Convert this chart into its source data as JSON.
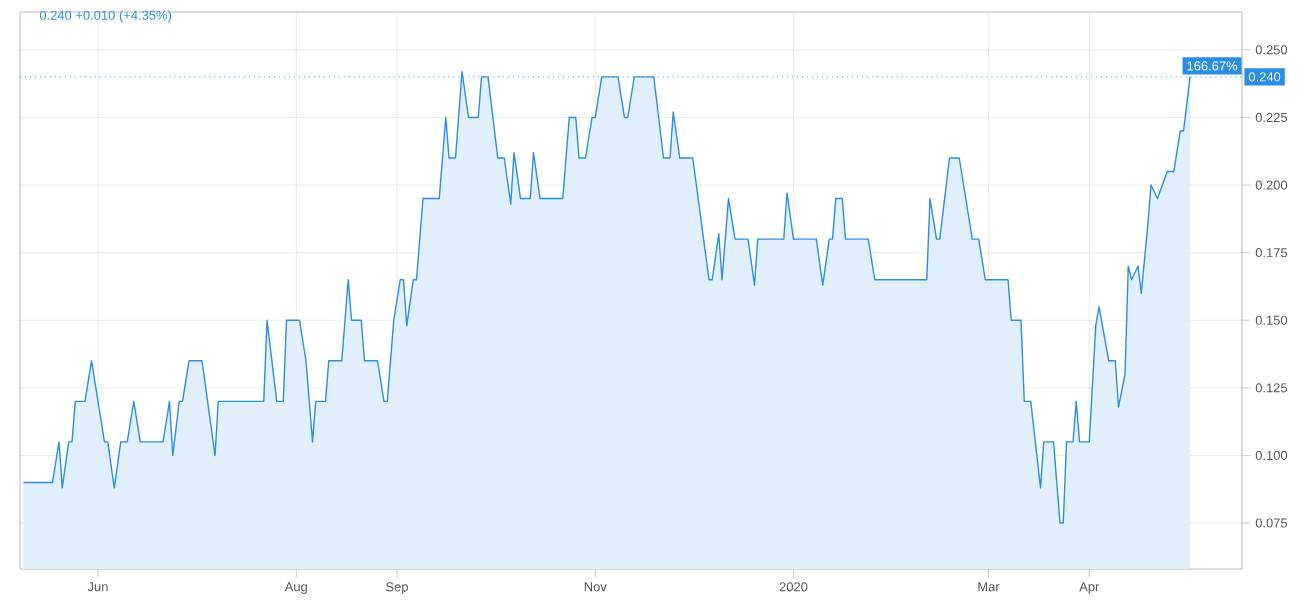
{
  "chart_data": {
    "type": "area",
    "title": "0.240 +0.010 (+4.35%)",
    "color": "#2a8ee6",
    "x": [
      "2019-05-09",
      "2019-05-18",
      "2019-05-20",
      "2019-05-21",
      "2019-05-23",
      "2019-05-24",
      "2019-05-25",
      "2019-05-28",
      "2019-05-30",
      "2019-06-03",
      "2019-06-04",
      "2019-06-06",
      "2019-06-08",
      "2019-06-10",
      "2019-06-12",
      "2019-06-14",
      "2019-06-21",
      "2019-06-23",
      "2019-06-24",
      "2019-06-26",
      "2019-06-27",
      "2019-06-29",
      "2019-07-03",
      "2019-07-07",
      "2019-07-08",
      "2019-07-22",
      "2019-07-23",
      "2019-07-26",
      "2019-07-28",
      "2019-07-29",
      "2019-08-02",
      "2019-08-04",
      "2019-08-06",
      "2019-08-07",
      "2019-08-10",
      "2019-08-11",
      "2019-08-15",
      "2019-08-17",
      "2019-08-18",
      "2019-08-21",
      "2019-08-22",
      "2019-08-26",
      "2019-08-28",
      "2019-08-29",
      "2019-08-31",
      "2019-09-02",
      "2019-09-03",
      "2019-09-04",
      "2019-09-06",
      "2019-09-07",
      "2019-09-09",
      "2019-09-14",
      "2019-09-16",
      "2019-09-17",
      "2019-09-19",
      "2019-09-21",
      "2019-09-23",
      "2019-09-26",
      "2019-09-27",
      "2019-09-29",
      "2019-10-02",
      "2019-10-04",
      "2019-10-06",
      "2019-10-07",
      "2019-10-09",
      "2019-10-12",
      "2019-10-13",
      "2019-10-15",
      "2019-10-22",
      "2019-10-24",
      "2019-10-26",
      "2019-10-27",
      "2019-10-29",
      "2019-10-31",
      "2019-11-01",
      "2019-11-03",
      "2019-11-08",
      "2019-11-10",
      "2019-11-11",
      "2019-11-13",
      "2019-11-19",
      "2019-11-22",
      "2019-11-24",
      "2019-11-25",
      "2019-11-27",
      "2019-12-01",
      "2019-12-06",
      "2019-12-07",
      "2019-12-09",
      "2019-12-10",
      "2019-12-12",
      "2019-12-14",
      "2019-12-18",
      "2019-12-20",
      "2019-12-21",
      "2019-12-29",
      "2019-12-30",
      "2020-01-01",
      "2020-01-08",
      "2020-01-10",
      "2020-01-12",
      "2020-01-13",
      "2020-01-14",
      "2020-01-16",
      "2020-01-17",
      "2020-01-24",
      "2020-01-26",
      "2020-02-11",
      "2020-02-12",
      "2020-02-14",
      "2020-02-15",
      "2020-02-18",
      "2020-02-21",
      "2020-02-25",
      "2020-02-27",
      "2020-02-29",
      "2020-03-07",
      "2020-03-08",
      "2020-03-11",
      "2020-03-12",
      "2020-03-14",
      "2020-03-17",
      "2020-03-18",
      "2020-03-21",
      "2020-03-23",
      "2020-03-24",
      "2020-03-25",
      "2020-03-27",
      "2020-03-28",
      "2020-03-29",
      "2020-04-01",
      "2020-04-03",
      "2020-04-04",
      "2020-04-07",
      "2020-04-09",
      "2020-04-10",
      "2020-04-12",
      "2020-04-13",
      "2020-04-14",
      "2020-04-16",
      "2020-04-17",
      "2020-04-19",
      "2020-04-20",
      "2020-04-22",
      "2020-04-25",
      "2020-04-27",
      "2020-04-29",
      "2020-04-30",
      "2020-05-02"
    ],
    "values": [
      0.09,
      0.09,
      0.105,
      0.088,
      0.105,
      0.105,
      0.12,
      0.12,
      0.135,
      0.105,
      0.105,
      0.088,
      0.105,
      0.105,
      0.12,
      0.105,
      0.105,
      0.12,
      0.1,
      0.12,
      0.12,
      0.135,
      0.135,
      0.1,
      0.12,
      0.12,
      0.15,
      0.12,
      0.12,
      0.15,
      0.15,
      0.135,
      0.105,
      0.12,
      0.12,
      0.135,
      0.135,
      0.165,
      0.15,
      0.15,
      0.135,
      0.135,
      0.12,
      0.12,
      0.15,
      0.165,
      0.165,
      0.148,
      0.165,
      0.165,
      0.195,
      0.195,
      0.225,
      0.21,
      0.21,
      0.242,
      0.225,
      0.225,
      0.24,
      0.24,
      0.21,
      0.21,
      0.193,
      0.212,
      0.195,
      0.195,
      0.212,
      0.195,
      0.195,
      0.225,
      0.225,
      0.21,
      0.21,
      0.225,
      0.225,
      0.24,
      0.24,
      0.225,
      0.225,
      0.24,
      0.24,
      0.21,
      0.21,
      0.227,
      0.21,
      0.21,
      0.165,
      0.165,
      0.182,
      0.165,
      0.195,
      0.18,
      0.18,
      0.163,
      0.18,
      0.18,
      0.197,
      0.18,
      0.18,
      0.163,
      0.18,
      0.18,
      0.195,
      0.195,
      0.18,
      0.18,
      0.165,
      0.165,
      0.195,
      0.18,
      0.18,
      0.21,
      0.21,
      0.18,
      0.18,
      0.165,
      0.165,
      0.15,
      0.15,
      0.12,
      0.12,
      0.088,
      0.105,
      0.105,
      0.075,
      0.075,
      0.105,
      0.105,
      0.12,
      0.105,
      0.105,
      0.148,
      0.155,
      0.135,
      0.135,
      0.118,
      0.13,
      0.17,
      0.165,
      0.17,
      0.16,
      0.185,
      0.2,
      0.195,
      0.205,
      0.205,
      0.22,
      0.22,
      0.24
    ],
    "xlim": [
      "2019-05-08",
      "2020-05-18"
    ],
    "xticks": [
      {
        "value": "2019-06-01",
        "label": "Jun"
      },
      {
        "value": "2019-08-01",
        "label": "Aug"
      },
      {
        "value": "2019-09-01",
        "label": "Sep"
      },
      {
        "value": "2019-11-01",
        "label": "Nov"
      },
      {
        "value": "2020-01-01",
        "label": "2020"
      },
      {
        "value": "2020-03-01",
        "label": "Mar"
      },
      {
        "value": "2020-04-01",
        "label": "Apr"
      }
    ],
    "ylim": [
      0.058,
      0.264
    ],
    "yticks": [
      {
        "value": 0.075,
        "label": "0.075"
      },
      {
        "value": 0.1,
        "label": "0.100"
      },
      {
        "value": 0.125,
        "label": "0.125"
      },
      {
        "value": 0.15,
        "label": "0.150"
      },
      {
        "value": 0.175,
        "label": "0.175"
      },
      {
        "value": 0.2,
        "label": "0.200"
      },
      {
        "value": 0.225,
        "label": "0.225"
      },
      {
        "value": 0.25,
        "label": "0.250"
      }
    ],
    "ref_lines": [
      {
        "axis": "y",
        "value": 0.24,
        "label": "0.240",
        "color": "#2a8ee6",
        "line_style": "dotted"
      }
    ],
    "annotations": [
      "166.67%"
    ],
    "grid": true
  }
}
